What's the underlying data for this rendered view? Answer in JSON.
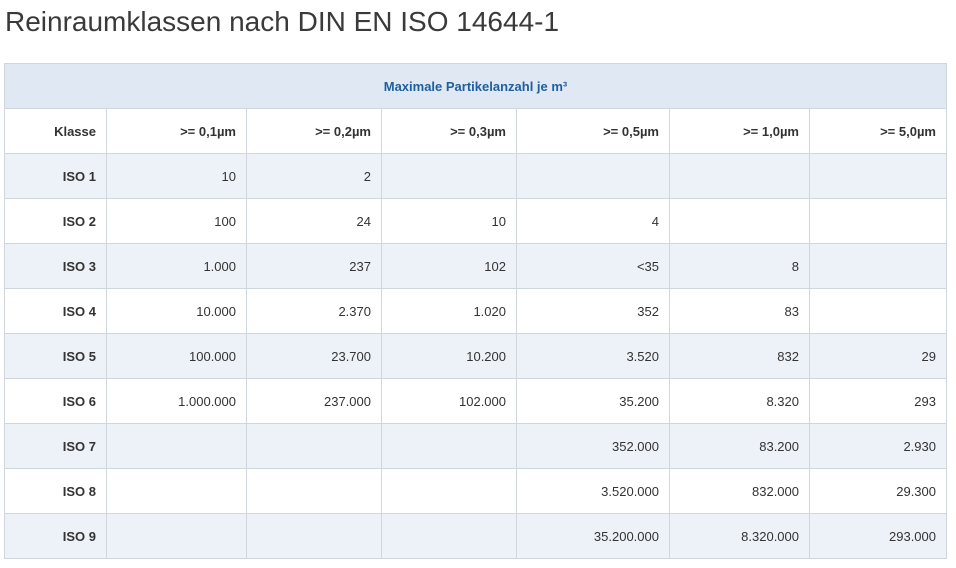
{
  "title": "Reinraumklassen nach DIN EN ISO 14644-1",
  "table": {
    "caption": "Maximale Partikelanzahl je m³",
    "headers": [
      "Klasse",
      ">= 0,1µm",
      ">= 0,2µm",
      ">= 0,3µm",
      ">= 0,5µm",
      ">= 1,0µm",
      ">= 5,0µm"
    ],
    "rows": [
      [
        "ISO 1",
        "10",
        "2",
        "",
        "",
        "",
        ""
      ],
      [
        "ISO 2",
        "100",
        "24",
        "10",
        "4",
        "",
        ""
      ],
      [
        "ISO 3",
        "1.000",
        "237",
        "102",
        "<35",
        "8",
        ""
      ],
      [
        "ISO 4",
        "10.000",
        "2.370",
        "1.020",
        "352",
        "83",
        ""
      ],
      [
        "ISO 5",
        "100.000",
        "23.700",
        "10.200",
        "3.520",
        "832",
        "29"
      ],
      [
        "ISO 6",
        "1.000.000",
        "237.000",
        "102.000",
        "35.200",
        "8.320",
        "293"
      ],
      [
        "ISO 7",
        "",
        "",
        "",
        "352.000",
        "83.200",
        "2.930"
      ],
      [
        "ISO 8",
        "",
        "",
        "",
        "3.520.000",
        "832.000",
        "29.300"
      ],
      [
        "ISO 9",
        "",
        "",
        "",
        "35.200.000",
        "8.320.000",
        "293.000"
      ]
    ]
  }
}
